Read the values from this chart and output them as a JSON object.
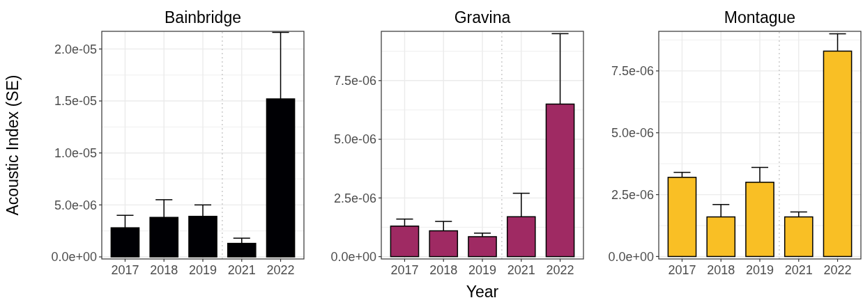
{
  "chart_data": [
    {
      "type": "bar",
      "title": "Bainbridge",
      "ylabel": "Acoustic Index (SE)",
      "categories": [
        "2017",
        "2018",
        "2019",
        "2021",
        "2022"
      ],
      "series": [
        {
          "color": "#000004",
          "values": [
            2.8e-06,
            3.8e-06,
            3.9e-06,
            1.3e-06,
            1.52e-05
          ],
          "errors": [
            [
              2.8e-06,
              4e-06
            ],
            [
              3.8e-06,
              5.5e-06
            ],
            [
              3.9e-06,
              5e-06
            ],
            [
              1.3e-06,
              1.8e-06
            ],
            [
              1.52e-05,
              2.16e-05
            ]
          ]
        }
      ],
      "ylim": [
        -2e-07,
        2.17e-05
      ],
      "yticks": [
        {
          "value": 0,
          "label": "0.0e+00"
        },
        {
          "value": 2.5e-06,
          "label": null
        },
        {
          "value": 5e-06,
          "label": "5.0e-06"
        },
        {
          "value": 7.5e-06,
          "label": null
        },
        {
          "value": 1e-05,
          "label": "1.0e-05"
        },
        {
          "value": 1.25e-05,
          "label": null
        },
        {
          "value": 1.5e-05,
          "label": "1.5e-05"
        },
        {
          "value": 1.75e-05,
          "label": null
        },
        {
          "value": 2e-05,
          "label": "2.0e-05"
        }
      ],
      "grid": true
    },
    {
      "type": "bar",
      "title": "Gravina",
      "xlabel": "Year",
      "categories": [
        "2017",
        "2018",
        "2019",
        "2021",
        "2022"
      ],
      "series": [
        {
          "color": "#9f2a63",
          "values": [
            1.3e-06,
            1.1e-06,
            8.5e-07,
            1.7e-06,
            6.5e-06
          ],
          "errors": [
            [
              1.3e-06,
              1.6e-06
            ],
            [
              1.1e-06,
              1.5e-06
            ],
            [
              8.5e-07,
              1e-06
            ],
            [
              1.7e-06,
              2.7e-06
            ],
            [
              6.5e-06,
              9.5e-06
            ]
          ]
        }
      ],
      "ylim": [
        -1e-07,
        9.6e-06
      ],
      "yticks": [
        {
          "value": 0,
          "label": "0.0e+00"
        },
        {
          "value": 1.25e-06,
          "label": null
        },
        {
          "value": 2.5e-06,
          "label": "2.5e-06"
        },
        {
          "value": 3.75e-06,
          "label": null
        },
        {
          "value": 5e-06,
          "label": "5.0e-06"
        },
        {
          "value": 6.25e-06,
          "label": null
        },
        {
          "value": 7.5e-06,
          "label": "7.5e-06"
        },
        {
          "value": 8.75e-06,
          "label": null
        }
      ],
      "grid": true
    },
    {
      "type": "bar",
      "title": "Montague",
      "categories": [
        "2017",
        "2018",
        "2019",
        "2021",
        "2022"
      ],
      "series": [
        {
          "color": "#f9bf25",
          "values": [
            3.2e-06,
            1.6e-06,
            3e-06,
            1.6e-06,
            8.3e-06
          ],
          "errors": [
            [
              3.2e-06,
              3.4e-06
            ],
            [
              1.6e-06,
              2.1e-06
            ],
            [
              3e-06,
              3.6e-06
            ],
            [
              1.6e-06,
              1.8e-06
            ],
            [
              8.3e-06,
              9e-06
            ]
          ]
        }
      ],
      "ylim": [
        -1e-07,
        9.1e-06
      ],
      "yticks": [
        {
          "value": 0,
          "label": "0.0e+00"
        },
        {
          "value": 1.25e-06,
          "label": null
        },
        {
          "value": 2.5e-06,
          "label": "2.5e-06"
        },
        {
          "value": 3.75e-06,
          "label": null
        },
        {
          "value": 5e-06,
          "label": "5.0e-06"
        },
        {
          "value": 6.25e-06,
          "label": null
        },
        {
          "value": 7.5e-06,
          "label": "7.5e-06"
        },
        {
          "value": 8.75e-06,
          "label": null
        }
      ],
      "grid": true
    }
  ]
}
